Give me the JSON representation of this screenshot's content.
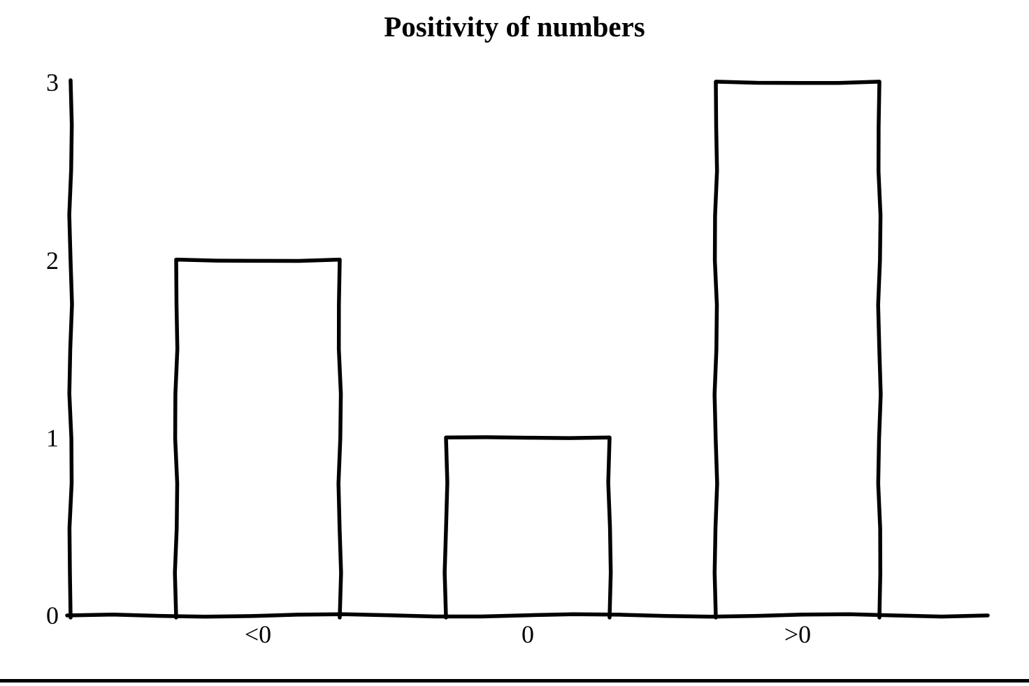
{
  "chart_data": {
    "type": "bar",
    "title": "Positivity of numbers",
    "categories": [
      "<0",
      "0",
      ">0"
    ],
    "values": [
      2,
      1,
      3
    ],
    "yticks": [
      0,
      1,
      2,
      3
    ],
    "ylim": [
      0,
      3
    ],
    "xlabel": "",
    "ylabel": "",
    "legend": "none",
    "grid": false,
    "style": "hand-drawn-sketch",
    "bar_fill": "none",
    "stroke_color": "#000000",
    "background_color": "#ffffff"
  }
}
